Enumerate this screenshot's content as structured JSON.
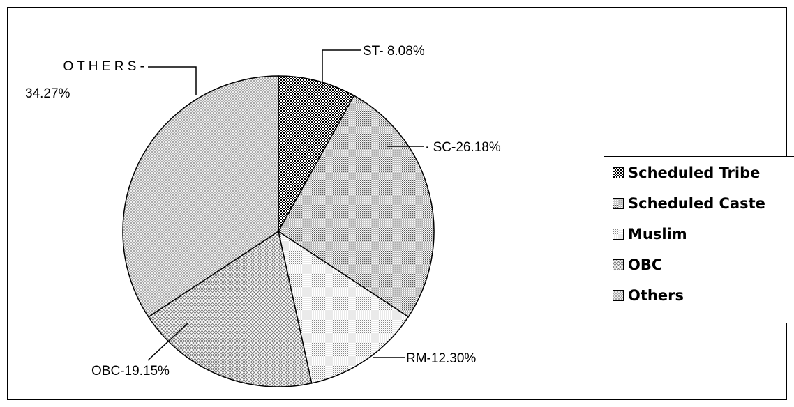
{
  "chart_data": {
    "type": "pie",
    "title": "",
    "slices": [
      {
        "key": "st",
        "legend": "Scheduled Tribe",
        "callout": [
          "ST- 8.08%"
        ],
        "value": 8.08,
        "pattern": "checker"
      },
      {
        "key": "sc",
        "legend": "Scheduled Caste",
        "callout": [
          "· SC-26.18%"
        ],
        "value": 26.18,
        "pattern": "dots-dense"
      },
      {
        "key": "rm",
        "legend": "Muslim",
        "callout": [
          "RM-12.30%"
        ],
        "value": 12.3,
        "pattern": "dots-light"
      },
      {
        "key": "obc",
        "legend": "OBC",
        "callout": [
          "OBC-19.15%"
        ],
        "value": 19.15,
        "pattern": "diagonal-cross"
      },
      {
        "key": "others",
        "legend": "Others",
        "callout": [
          "O T H E R S -",
          "34.27%"
        ],
        "value": 34.27,
        "pattern": "diagonal-cross-light"
      }
    ],
    "start": "top, clockwise",
    "legend_position": "right"
  }
}
